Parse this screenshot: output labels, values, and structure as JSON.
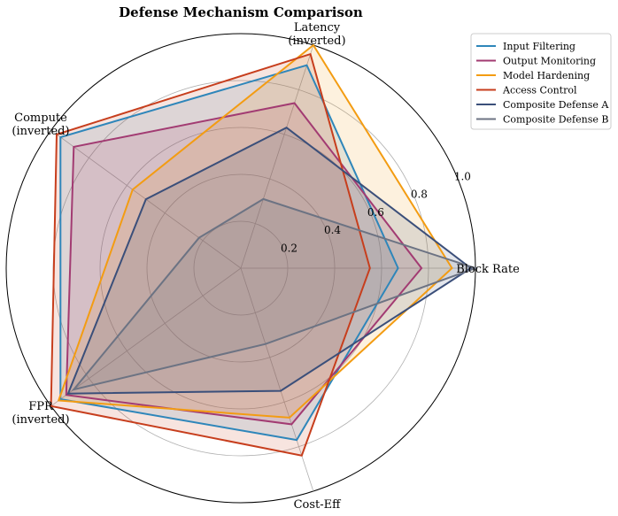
{
  "chart_data": {
    "type": "radar",
    "title": "Defense Mechanism Comparison",
    "axes": [
      {
        "name": "block-rate",
        "lines": [
          "Block Rate"
        ]
      },
      {
        "name": "latency",
        "lines": [
          "Latency",
          "(inverted)"
        ]
      },
      {
        "name": "compute",
        "lines": [
          "Compute",
          "(inverted)"
        ]
      },
      {
        "name": "fpr",
        "lines": [
          "FPR",
          "(inverted)"
        ]
      },
      {
        "name": "cost-eff",
        "lines": [
          "Cost-Eff"
        ]
      }
    ],
    "rlim": [
      0,
      1.0
    ],
    "rticks": [
      0.2,
      0.4,
      0.6,
      0.8,
      1.0
    ],
    "rtick_labels": [
      "0.2",
      "0.4",
      "0.6",
      "0.8",
      "1.0"
    ],
    "grid": true,
    "legend_position": "top-right",
    "series": [
      {
        "name": "Input Filtering",
        "color": "#2e86ba",
        "values": [
          0.67,
          0.91,
          0.95,
          0.95,
          0.77
        ]
      },
      {
        "name": "Output Monitoring",
        "color": "#a23b72",
        "values": [
          0.77,
          0.74,
          0.88,
          0.92,
          0.7
        ]
      },
      {
        "name": "Model Hardening",
        "color": "#f39c12",
        "values": [
          0.9,
          1.0,
          0.57,
          0.96,
          0.67
        ]
      },
      {
        "name": "Access Control",
        "color": "#c73e1d",
        "values": [
          0.55,
          0.96,
          0.97,
          1.0,
          0.84
        ]
      },
      {
        "name": "Composite Defense A",
        "color": "#3b4f7a",
        "values": [
          0.98,
          0.63,
          0.5,
          0.91,
          0.55
        ]
      },
      {
        "name": "Composite Defense B",
        "color": "#6c7383",
        "values": [
          1.0,
          0.31,
          0.22,
          0.88,
          0.34
        ]
      }
    ]
  }
}
